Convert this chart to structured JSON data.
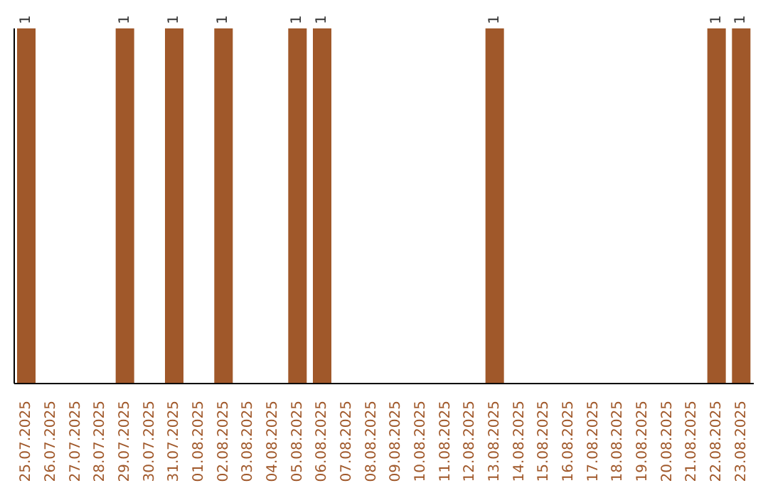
{
  "chart_data": {
    "type": "bar",
    "ylim": [
      0,
      1
    ],
    "categories": [
      "25.07.2025",
      "26.07.2025",
      "27.07.2025",
      "28.07.2025",
      "29.07.2025",
      "30.07.2025",
      "31.07.2025",
      "01.08.2025",
      "02.08.2025",
      "03.08.2025",
      "04.08.2025",
      "05.08.2025",
      "06.08.2025",
      "07.08.2025",
      "08.08.2025",
      "09.08.2025",
      "10.08.2025",
      "11.08.2025",
      "12.08.2025",
      "13.08.2025",
      "14.08.2025",
      "15.08.2025",
      "16.08.2025",
      "17.08.2025",
      "18.08.2025",
      "19.08.2025",
      "20.08.2025",
      "21.08.2025",
      "22.08.2025",
      "23.08.2025"
    ],
    "values": [
      1,
      0,
      0,
      0,
      1,
      0,
      1,
      0,
      1,
      0,
      0,
      1,
      1,
      0,
      0,
      0,
      0,
      0,
      0,
      1,
      0,
      0,
      0,
      0,
      0,
      0,
      0,
      0,
      1,
      1
    ],
    "value_labels": [
      "1",
      null,
      null,
      null,
      "1",
      null,
      "1",
      null,
      "1",
      null,
      null,
      "1",
      "1",
      null,
      null,
      null,
      null,
      null,
      null,
      "1",
      null,
      null,
      null,
      null,
      null,
      null,
      null,
      null,
      "1",
      "1"
    ],
    "color": "#a0582a",
    "grid": false,
    "legend": false
  }
}
